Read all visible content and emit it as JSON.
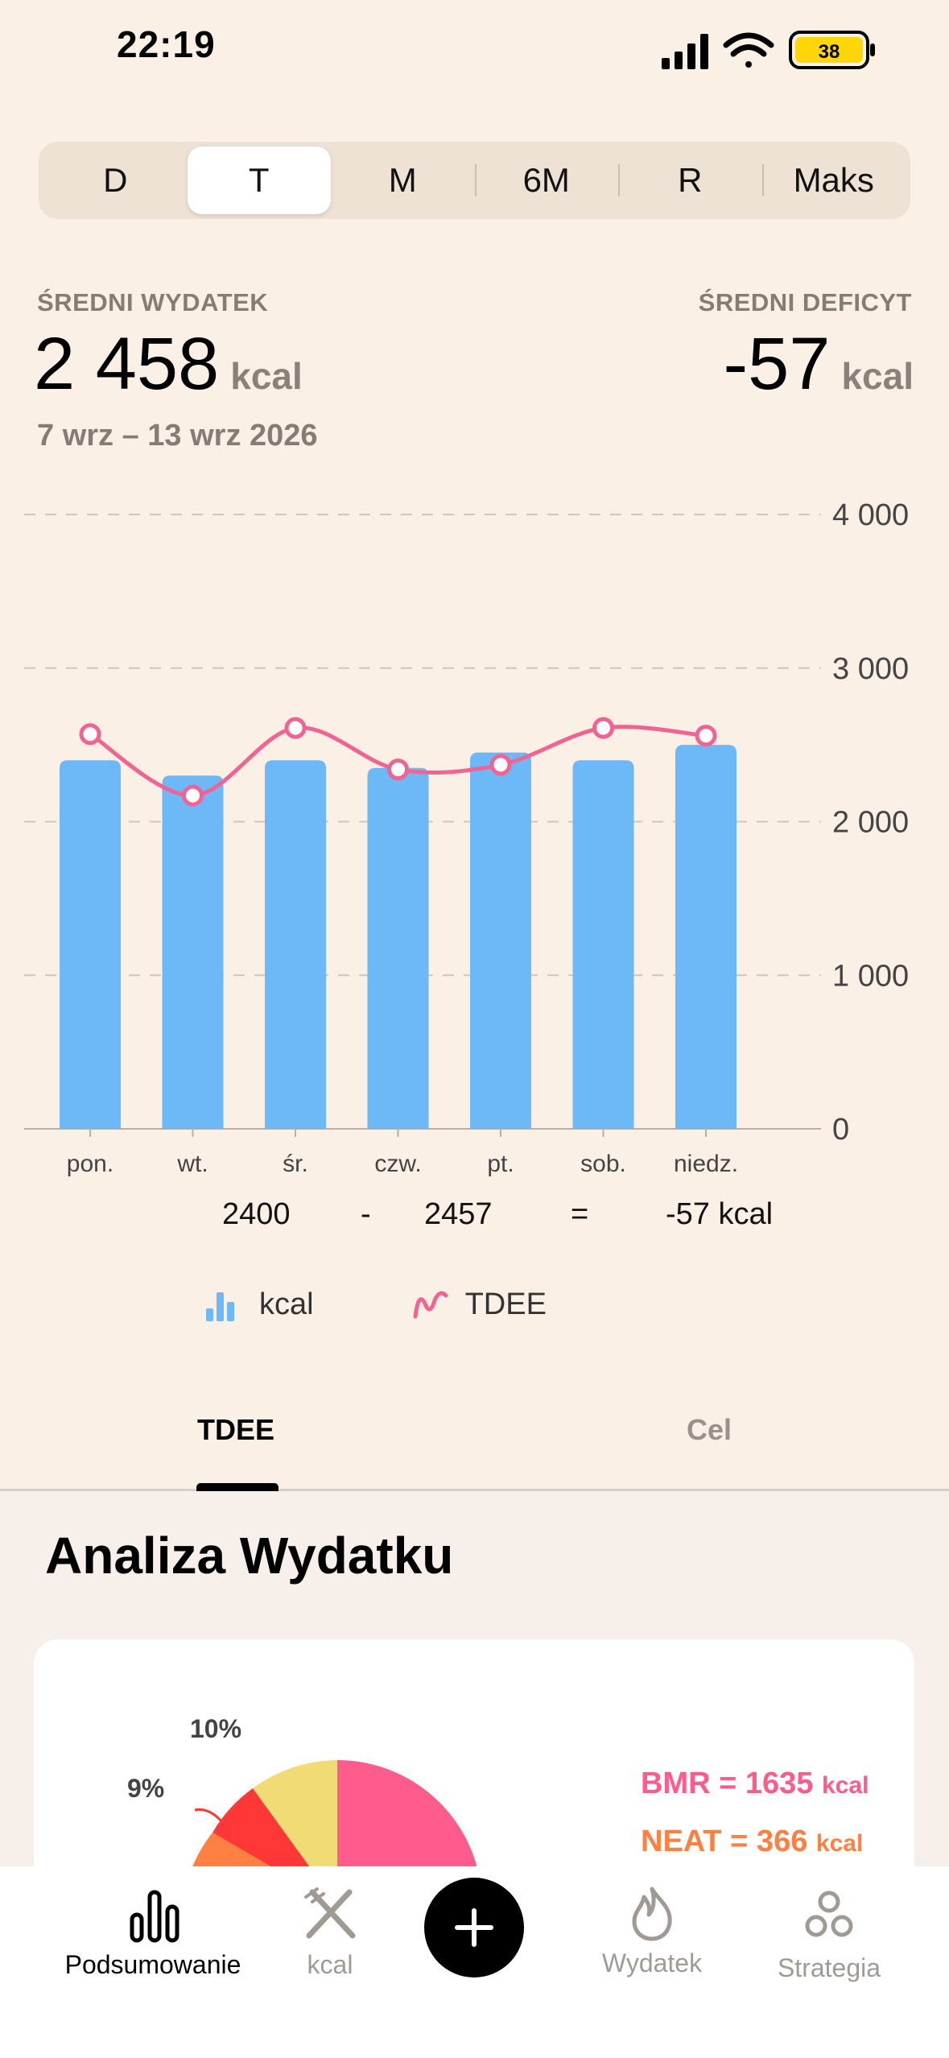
{
  "status_bar": {
    "time": "22:19",
    "battery": "38"
  },
  "segments": [
    {
      "label": "D",
      "selected": false
    },
    {
      "label": "T",
      "selected": true
    },
    {
      "label": "M",
      "selected": false
    },
    {
      "label": "6M",
      "selected": false
    },
    {
      "label": "R",
      "selected": false
    },
    {
      "label": "Maks",
      "selected": false
    }
  ],
  "stats": {
    "avg_expense_label": "ŚREDNI WYDATEK",
    "avg_expense_value": "2 458",
    "avg_expense_unit": "kcal",
    "avg_deficit_label": "ŚREDNI DEFICYT",
    "avg_deficit_value": "-57",
    "avg_deficit_unit": "kcal",
    "date_range": "7 wrz – 13 wrz 2026"
  },
  "chart_data": {
    "type": "bar",
    "categories": [
      "pon.",
      "wt.",
      "śr.",
      "czw.",
      "pt.",
      "sob.",
      "niedz."
    ],
    "series": [
      {
        "name": "kcal",
        "values": [
          2400,
          2300,
          2400,
          2350,
          2450,
          2400,
          2500
        ]
      },
      {
        "name": "TDEE",
        "values": [
          2570,
          2170,
          2610,
          2340,
          2370,
          2610,
          2560
        ]
      }
    ],
    "yticks": [
      "0",
      "1 000",
      "2 000",
      "3 000",
      "4 000"
    ],
    "ylim": [
      0,
      4000
    ],
    "colors": {
      "bars": "#6DB9F7",
      "line": "#F06493"
    }
  },
  "equation": {
    "intake": "2400",
    "minus": "-",
    "tdee": "2457",
    "equals": "=",
    "result": "-57 kcal"
  },
  "legend": {
    "bars_label": "kcal",
    "line_label": "TDEE"
  },
  "tabs": [
    {
      "label": "TDEE",
      "active": true
    },
    {
      "label": "Cel",
      "active": false
    }
  ],
  "analysis": {
    "title": "Analiza Wydatku",
    "pct_10": "10%",
    "pct_9": "9%",
    "bmr_label": "BMR = 1635",
    "bmr_unit": "kcal",
    "neat_label": "NEAT = 366",
    "neat_unit": "kcal",
    "colors": {
      "bmr": "#FF5B8C",
      "neat": "#FF8041",
      "red": "#FF3737",
      "yellow": "#F0DB74"
    }
  },
  "nav": [
    {
      "label": "Podsumowanie",
      "icon": "bar-chart-icon",
      "active": true
    },
    {
      "label": "kcal",
      "icon": "fork-knife-icon",
      "active": false
    },
    {
      "label": "",
      "icon": "plus-icon",
      "active": false
    },
    {
      "label": "Wydatek",
      "icon": "flame-icon",
      "active": false
    },
    {
      "label": "Strategia",
      "icon": "circles-icon",
      "active": false
    }
  ]
}
